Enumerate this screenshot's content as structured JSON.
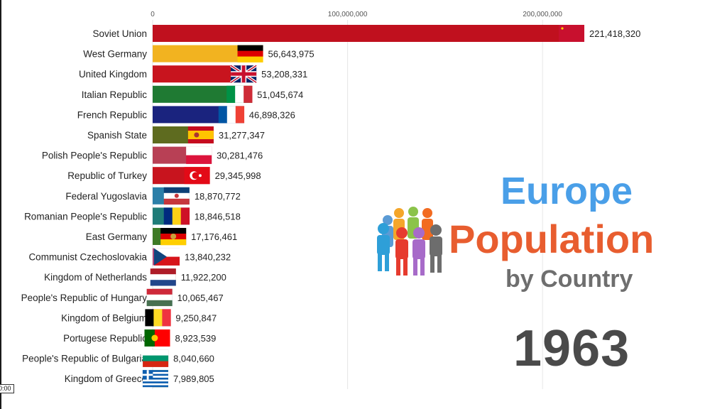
{
  "chart_data": {
    "type": "bar",
    "orientation": "horizontal",
    "x_ticks": [
      "0",
      "100,000,000",
      "200,000,000"
    ],
    "xlim": [
      0,
      235000000
    ],
    "grid": true,
    "categories": [
      "Soviet Union",
      "West Germany",
      "United Kingdom",
      "Italian Republic",
      "French Republic",
      "Spanish State",
      "Polish People's Republic",
      "Republic of Turkey",
      "Federal Yugoslavia",
      "Romanian People's Republic",
      "East Germany",
      "Communist Czechoslovakia",
      "Kingdom of Netherlands",
      "People's Republic of Hungary",
      "Kingdom of Belgium",
      "Portugese Republic",
      "People's Republic of Bulgaria",
      "Kingdom of Greece"
    ],
    "values": [
      221418320,
      56643975,
      53208331,
      51045674,
      46898326,
      31277347,
      30281476,
      29345998,
      18870772,
      18846518,
      17176461,
      13840232,
      11922200,
      10065467,
      9250847,
      8923539,
      8040660,
      7989805
    ],
    "value_labels": [
      "221,418,320",
      "56,643,975",
      "53,208,331",
      "51,045,674",
      "46,898,326",
      "31,277,347",
      "30,281,476",
      "29,345,998",
      "18,870,772",
      "18,846,518",
      "17,176,461",
      "13,840,232",
      "11,922,200",
      "10,065,467",
      "9,250,847",
      "8,923,539",
      "8,040,660",
      "7,989,805"
    ],
    "colors": [
      "#c0101e",
      "#f2b320",
      "#c8141e",
      "#1f7a33",
      "#1a237e",
      "#5e6b1f",
      "#b84055",
      "#c8141e",
      "#2b7fa8",
      "#1f7c78",
      "#3e7a26",
      "#b2477a",
      "#a44a3c",
      "#1d7a93",
      "#7b4aa3",
      "#63692a",
      "#a84f49",
      "#4d7a2e"
    ],
    "flags": [
      "soviet",
      "west-germany",
      "uk",
      "italy",
      "france",
      "spain",
      "poland",
      "turkey",
      "yugoslavia",
      "romania",
      "east-germany",
      "czechoslovakia",
      "netherlands",
      "hungary",
      "belgium",
      "portugal",
      "bulgaria",
      "greece"
    ]
  },
  "title": {
    "line1": "Europe",
    "line2": "Population",
    "line3": "by Country"
  },
  "year": "1963",
  "timestamp": "0:00",
  "colors": {
    "title_blue": "#4a9fe8",
    "title_orange": "#e85d2f",
    "subtitle_gray": "#6e6e6e",
    "year_gray": "#4a4a4a"
  }
}
